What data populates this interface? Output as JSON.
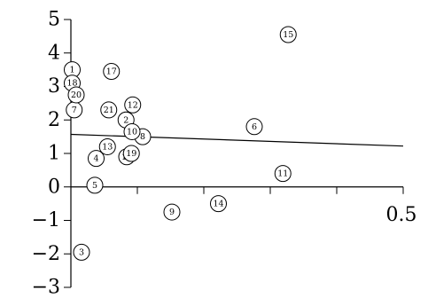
{
  "chart_data": {
    "type": "scatter",
    "title": "",
    "xlabel": "",
    "ylabel": "",
    "xlim": [
      -0.1,
      0.5
    ],
    "ylim": [
      -3,
      5
    ],
    "x_ticks": [
      0.5
    ],
    "x_tick_labels": [
      "0.5"
    ],
    "y_ticks": [
      5,
      4,
      3,
      2,
      1,
      0,
      -1,
      -2,
      -3
    ],
    "y_tick_labels": [
      "5",
      "4",
      "3",
      "2",
      "1",
      "0",
      "−1",
      "−2",
      "−3"
    ],
    "grid": false,
    "legend": "none",
    "points": [
      {
        "label": "1",
        "x": 0.002,
        "y": 3.5
      },
      {
        "label": "2",
        "x": 0.083,
        "y": 2.0
      },
      {
        "label": "3",
        "x": 0.016,
        "y": -1.95
      },
      {
        "label": "4",
        "x": 0.038,
        "y": 0.85
      },
      {
        "label": "5",
        "x": 0.036,
        "y": 0.05
      },
      {
        "label": "6",
        "x": 0.276,
        "y": 1.8
      },
      {
        "label": "7",
        "x": 0.005,
        "y": 2.3
      },
      {
        "label": "8",
        "x": 0.108,
        "y": 1.5
      },
      {
        "label": "9",
        "x": 0.152,
        "y": -0.75
      },
      {
        "label": "10",
        "x": 0.092,
        "y": 1.65
      },
      {
        "label": "11",
        "x": 0.319,
        "y": 0.4
      },
      {
        "label": "12",
        "x": 0.093,
        "y": 2.45
      },
      {
        "label": "13",
        "x": 0.055,
        "y": 1.2
      },
      {
        "label": "14",
        "x": 0.222,
        "y": -0.5
      },
      {
        "label": "15",
        "x": 0.327,
        "y": 4.55
      },
      {
        "label": "16",
        "x": 0.084,
        "y": 0.9
      },
      {
        "label": "17",
        "x": 0.061,
        "y": 3.45
      },
      {
        "label": "18",
        "x": 0.002,
        "y": 3.1
      },
      {
        "label": "19",
        "x": 0.091,
        "y": 1.0
      },
      {
        "label": "20",
        "x": 0.008,
        "y": 2.75
      },
      {
        "label": "21",
        "x": 0.057,
        "y": 2.3
      }
    ],
    "fit_line": {
      "x": [
        0.0,
        0.5
      ],
      "y": [
        1.57,
        1.22
      ]
    }
  }
}
